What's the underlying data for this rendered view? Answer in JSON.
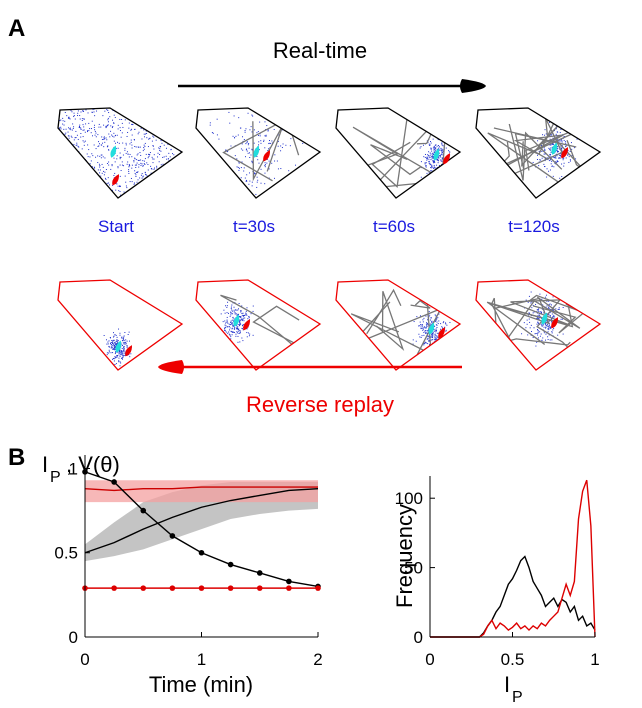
{
  "panel_a": {
    "label": "A",
    "top_arrow": "Real-time",
    "frames": [
      "Start",
      "t=30s",
      "t=60s",
      "t=120s"
    ],
    "bottom_arrow": "Reverse replay"
  },
  "panel_b": {
    "label": "B"
  },
  "chart_data": [
    {
      "type": "line",
      "ylabel": [
        "I",
        "P",
        ", V(θ)"
      ],
      "xlabel": "Time (min)",
      "x": [
        0,
        0.25,
        0.5,
        0.75,
        1,
        1.25,
        1.5,
        1.75,
        2
      ],
      "xlim": [
        0,
        2
      ],
      "xticks": [
        0,
        1,
        2
      ],
      "ylim": [
        0,
        1.08
      ],
      "yticks": [
        0,
        0.5,
        1
      ],
      "series": [
        {
          "color": "#b0b0b0",
          "lower": [
            0.45,
            0.48,
            0.52,
            0.58,
            0.64,
            0.7,
            0.73,
            0.75,
            0.76
          ],
          "upper": [
            0.55,
            0.68,
            0.8,
            0.86,
            0.9,
            0.92,
            0.92,
            0.92,
            0.92
          ]
        },
        {
          "color": "#f4a0a0",
          "lower": [
            0.8,
            0.8,
            0.8,
            0.8,
            0.8,
            0.8,
            0.8,
            0.8,
            0.8
          ],
          "upper": [
            0.93,
            0.93,
            0.93,
            0.93,
            0.93,
            0.93,
            0.93,
            0.93,
            0.93
          ]
        },
        {
          "color": "#000000",
          "values": [
            0.5,
            0.56,
            0.64,
            0.71,
            0.77,
            0.81,
            0.84,
            0.87,
            0.88
          ]
        },
        {
          "color": "#cc0000",
          "values": [
            0.88,
            0.87,
            0.88,
            0.88,
            0.89,
            0.89,
            0.89,
            0.89,
            0.89
          ]
        },
        {
          "color": "#000000",
          "markers": true,
          "values": [
            0.98,
            0.92,
            0.75,
            0.6,
            0.5,
            0.43,
            0.38,
            0.33,
            0.3
          ]
        },
        {
          "color": "#dd0000",
          "markers": true,
          "values": [
            0.29,
            0.29,
            0.29,
            0.29,
            0.29,
            0.29,
            0.29,
            0.29,
            0.29
          ]
        }
      ]
    },
    {
      "type": "line",
      "ylabel": "Frequency",
      "xlabel": [
        "I",
        "P"
      ],
      "x": [
        0,
        0.3,
        0.325,
        0.35,
        0.375,
        0.4,
        0.425,
        0.45,
        0.475,
        0.5,
        0.525,
        0.55,
        0.575,
        0.6,
        0.625,
        0.65,
        0.675,
        0.7,
        0.725,
        0.75,
        0.775,
        0.8,
        0.825,
        0.85,
        0.875,
        0.9,
        0.925,
        0.95,
        0.975,
        1
      ],
      "xlim": [
        0,
        1
      ],
      "xticks": [
        0,
        0.5,
        1
      ],
      "ylim": [
        0,
        116
      ],
      "yticks": [
        0,
        50,
        100
      ],
      "series": [
        {
          "color": "#000000",
          "values": [
            0,
            0,
            3,
            8,
            12,
            18,
            22,
            30,
            38,
            42,
            48,
            55,
            58,
            50,
            40,
            35,
            30,
            22,
            25,
            28,
            22,
            27,
            25,
            18,
            22,
            12,
            15,
            8,
            10,
            5
          ]
        },
        {
          "color": "#dd0000",
          "values": [
            0,
            0,
            2,
            8,
            12,
            6,
            10,
            8,
            5,
            7,
            10,
            6,
            8,
            5,
            8,
            6,
            10,
            8,
            12,
            15,
            18,
            28,
            38,
            30,
            40,
            85,
            105,
            113,
            80,
            0
          ]
        }
      ]
    }
  ]
}
